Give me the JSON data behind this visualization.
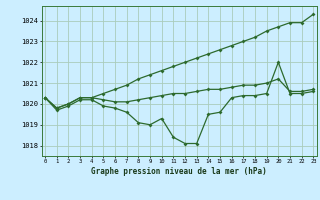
{
  "title": "Graphe pression niveau de la mer (hPa)",
  "background_color": "#cceeff",
  "line_color": "#2d6a2d",
  "grid_color": "#aaddcc",
  "x_ticks": [
    0,
    1,
    2,
    3,
    4,
    5,
    6,
    7,
    8,
    9,
    10,
    11,
    12,
    13,
    14,
    15,
    16,
    17,
    18,
    19,
    20,
    21,
    22,
    23
  ],
  "ylim": [
    1017.5,
    1024.7
  ],
  "yticks": [
    1018,
    1019,
    1020,
    1021,
    1022,
    1023,
    1024
  ],
  "series_top": [
    1020.3,
    1019.8,
    1020.0,
    1020.3,
    1020.3,
    1020.5,
    1020.7,
    1020.9,
    1021.2,
    1021.4,
    1021.6,
    1021.8,
    1022.0,
    1022.2,
    1022.4,
    1022.6,
    1022.8,
    1023.0,
    1023.2,
    1023.5,
    1023.7,
    1023.9,
    1023.9,
    1024.3
  ],
  "series_mid": [
    1020.3,
    1019.8,
    1020.0,
    1020.3,
    1020.3,
    1020.2,
    1020.1,
    1020.1,
    1020.2,
    1020.3,
    1020.4,
    1020.5,
    1020.5,
    1020.6,
    1020.7,
    1020.7,
    1020.8,
    1020.9,
    1020.9,
    1021.0,
    1021.2,
    1020.6,
    1020.6,
    1020.7
  ],
  "series_bot": [
    1020.3,
    1019.7,
    1019.9,
    1020.2,
    1020.2,
    1019.9,
    1019.8,
    1019.6,
    1019.1,
    1019.0,
    1019.3,
    1018.4,
    1018.1,
    1018.1,
    1019.5,
    1019.6,
    1020.3,
    1020.4,
    1020.4,
    1020.5,
    1022.0,
    1020.5,
    1020.5,
    1020.6
  ]
}
